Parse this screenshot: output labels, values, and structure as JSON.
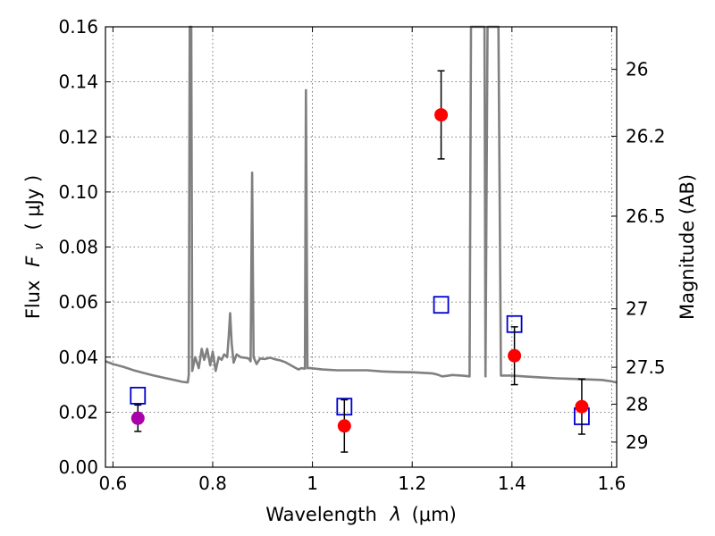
{
  "chart_data": {
    "type": "scatter",
    "title": "",
    "xlabel": "Wavelength",
    "xlabel_symbol": "λ",
    "xlabel_unit": "(μm)",
    "ylabel": "Flux",
    "ylabel_symbol": "F",
    "ylabel_symbol_sub": "ν",
    "ylabel_unit": "( μJy )",
    "y2label": "Magnitude (AB)",
    "xlim": [
      0.585,
      1.61
    ],
    "ylim": [
      0.0,
      0.16
    ],
    "xticks": [
      {
        "value": 0.6,
        "label": "0.6"
      },
      {
        "value": 0.8,
        "label": "0.8"
      },
      {
        "value": 1.0,
        "label": "1"
      },
      {
        "value": 1.2,
        "label": "1.2"
      },
      {
        "value": 1.4,
        "label": "1.4"
      },
      {
        "value": 1.6,
        "label": "1.6"
      }
    ],
    "yticks": [
      {
        "value": 0.0,
        "label": "0.00"
      },
      {
        "value": 0.02,
        "label": "0.02"
      },
      {
        "value": 0.04,
        "label": "0.04"
      },
      {
        "value": 0.06,
        "label": "0.06"
      },
      {
        "value": 0.08,
        "label": "0.08"
      },
      {
        "value": 0.1,
        "label": "0.10"
      },
      {
        "value": 0.12,
        "label": "0.12"
      },
      {
        "value": 0.14,
        "label": "0.14"
      },
      {
        "value": 0.16,
        "label": "0.16"
      }
    ],
    "y2ticks": [
      {
        "mag": 26,
        "label": "26"
      },
      {
        "mag": 26.2,
        "label": "26.2"
      },
      {
        "mag": 26.5,
        "label": "26.5"
      },
      {
        "mag": 27,
        "label": "27"
      },
      {
        "mag": 27.5,
        "label": "27.5"
      },
      {
        "mag": 28,
        "label": "28"
      },
      {
        "mag": 29,
        "label": "29"
      }
    ],
    "grid": true,
    "series": [
      {
        "type": "line",
        "color": "#808080",
        "points": [
          [
            0.585,
            0.0385
          ],
          [
            0.6,
            0.0375
          ],
          [
            0.62,
            0.0365
          ],
          [
            0.64,
            0.0353
          ],
          [
            0.66,
            0.0343
          ],
          [
            0.68,
            0.0334
          ],
          [
            0.7,
            0.0326
          ],
          [
            0.72,
            0.0318
          ],
          [
            0.74,
            0.031
          ],
          [
            0.75,
            0.0308
          ],
          [
            0.752,
            0.0335
          ],
          [
            0.754,
            0.16
          ],
          [
            0.757,
            0.16
          ],
          [
            0.759,
            0.035
          ],
          [
            0.765,
            0.04
          ],
          [
            0.772,
            0.036
          ],
          [
            0.778,
            0.043
          ],
          [
            0.783,
            0.039
          ],
          [
            0.789,
            0.043
          ],
          [
            0.795,
            0.037
          ],
          [
            0.8,
            0.042
          ],
          [
            0.806,
            0.035
          ],
          [
            0.812,
            0.04
          ],
          [
            0.818,
            0.039
          ],
          [
            0.823,
            0.041
          ],
          [
            0.829,
            0.04
          ],
          [
            0.832,
            0.047
          ],
          [
            0.835,
            0.056
          ],
          [
            0.838,
            0.045
          ],
          [
            0.842,
            0.038
          ],
          [
            0.848,
            0.041
          ],
          [
            0.856,
            0.04
          ],
          [
            0.864,
            0.0398
          ],
          [
            0.872,
            0.0395
          ],
          [
            0.876,
            0.0385
          ],
          [
            0.879,
            0.107
          ],
          [
            0.882,
            0.04
          ],
          [
            0.888,
            0.0375
          ],
          [
            0.895,
            0.0395
          ],
          [
            0.905,
            0.0393
          ],
          [
            0.915,
            0.0398
          ],
          [
            0.925,
            0.0392
          ],
          [
            0.935,
            0.0388
          ],
          [
            0.945,
            0.0382
          ],
          [
            0.955,
            0.0372
          ],
          [
            0.965,
            0.0362
          ],
          [
            0.972,
            0.0355
          ],
          [
            0.978,
            0.036
          ],
          [
            0.985,
            0.0358
          ],
          [
            0.987,
            0.137
          ],
          [
            0.99,
            0.036
          ],
          [
            0.995,
            0.036
          ],
          [
            1.02,
            0.0355
          ],
          [
            1.05,
            0.0352
          ],
          [
            1.08,
            0.0352
          ],
          [
            1.11,
            0.0352
          ],
          [
            1.14,
            0.0348
          ],
          [
            1.17,
            0.0346
          ],
          [
            1.2,
            0.0345
          ],
          [
            1.22,
            0.0343
          ],
          [
            1.24,
            0.0341
          ],
          [
            1.25,
            0.0337
          ],
          [
            1.26,
            0.033
          ],
          [
            1.27,
            0.0332
          ],
          [
            1.28,
            0.0335
          ],
          [
            1.3,
            0.0333
          ],
          [
            1.315,
            0.033
          ],
          [
            1.318,
            0.16
          ],
          [
            1.345,
            0.16
          ],
          [
            1.347,
            0.033
          ],
          [
            1.351,
            0.16
          ],
          [
            1.36,
            0.16
          ],
          [
            1.373,
            0.16
          ],
          [
            1.378,
            0.0333
          ],
          [
            1.4,
            0.0333
          ],
          [
            1.43,
            0.0329
          ],
          [
            1.46,
            0.0326
          ],
          [
            1.49,
            0.0323
          ],
          [
            1.52,
            0.0321
          ],
          [
            1.55,
            0.0319
          ],
          [
            1.58,
            0.0317
          ],
          [
            1.6,
            0.0312
          ],
          [
            1.61,
            0.0308
          ]
        ]
      },
      {
        "type": "model_squares",
        "color": "#0000cc",
        "points": [
          [
            0.65,
            0.026
          ],
          [
            1.064,
            0.022
          ],
          [
            1.258,
            0.059
          ],
          [
            1.405,
            0.052
          ],
          [
            1.54,
            0.0185
          ]
        ]
      },
      {
        "type": "observed_points",
        "color": "#ff0000",
        "points": [
          {
            "x": 1.064,
            "y": 0.015,
            "yerr": 0.0095
          },
          {
            "x": 1.258,
            "y": 0.128,
            "yerr": 0.016
          },
          {
            "x": 1.405,
            "y": 0.0405,
            "yerr": 0.0105
          },
          {
            "x": 1.54,
            "y": 0.022,
            "yerr": 0.01
          }
        ]
      },
      {
        "type": "observed_point_alt",
        "color": "#aa00aa",
        "points": [
          {
            "x": 0.65,
            "y": 0.0178,
            "yerr": 0.0048
          }
        ]
      }
    ]
  }
}
